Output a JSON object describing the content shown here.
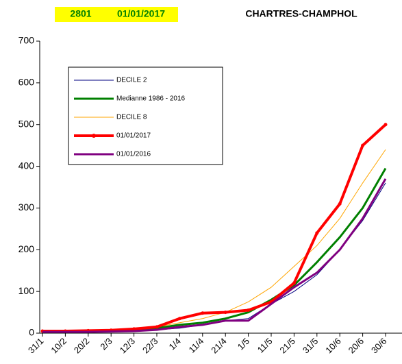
{
  "chart_data": {
    "type": "line",
    "header": {
      "code": "2801",
      "date": "01/01/2017",
      "station": "CHARTRES-CHAMPHOL"
    },
    "categories": [
      "31/1",
      "10/2",
      "20/2",
      "2/3",
      "12/3",
      "22/3",
      "1/4",
      "11/4",
      "21/4",
      "1/5",
      "11/5",
      "21/5",
      "31/5",
      "10/6",
      "20/6",
      "30/6"
    ],
    "series": [
      {
        "name": "DECILE 2",
        "color": "#000080",
        "width": 1,
        "values": [
          3,
          3,
          4,
          4,
          5,
          8,
          12,
          20,
          30,
          35,
          70,
          100,
          140,
          200,
          270,
          360
        ]
      },
      {
        "name": "Medianne 1986 - 2016",
        "color": "#008000",
        "width": 3,
        "values": [
          5,
          5,
          5,
          6,
          8,
          12,
          20,
          25,
          35,
          50,
          80,
          115,
          170,
          230,
          300,
          395
        ]
      },
      {
        "name": "DECILE 8",
        "color": "#ffa500",
        "width": 1,
        "values": [
          5,
          5,
          6,
          7,
          10,
          15,
          25,
          35,
          50,
          75,
          110,
          160,
          210,
          275,
          360,
          440
        ]
      },
      {
        "name": "01/01/2017",
        "color": "#ff0000",
        "width": 4,
        "marker": true,
        "values": [
          5,
          5,
          6,
          7,
          10,
          15,
          35,
          48,
          50,
          55,
          75,
          120,
          240,
          310,
          450,
          500
        ]
      },
      {
        "name": "01/01/2016",
        "color": "#800080",
        "width": 3,
        "values": [
          3,
          3,
          3,
          4,
          5,
          8,
          15,
          20,
          30,
          30,
          70,
          110,
          145,
          200,
          275,
          370
        ]
      }
    ],
    "ylim": [
      0,
      700
    ],
    "yticks": [
      0,
      100,
      200,
      300,
      400,
      500,
      600,
      700
    ]
  }
}
